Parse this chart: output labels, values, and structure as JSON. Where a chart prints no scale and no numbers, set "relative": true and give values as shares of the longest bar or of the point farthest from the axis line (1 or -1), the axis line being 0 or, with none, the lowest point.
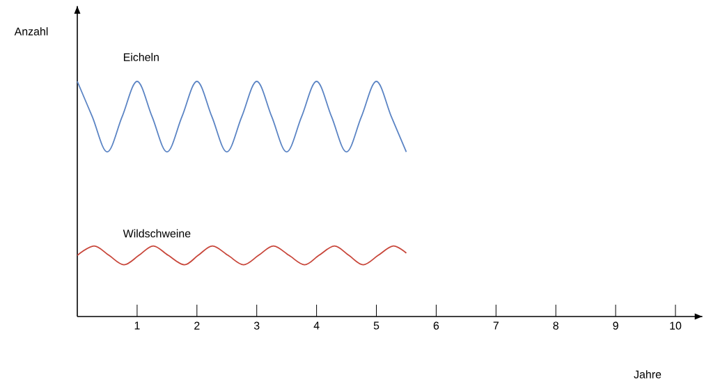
{
  "chart_data": {
    "type": "line",
    "relative": true,
    "xlabel": "Jahre",
    "ylabel": "Anzahl",
    "xlim": [
      0,
      10.45
    ],
    "xticks": [
      1,
      2,
      3,
      4,
      5,
      6,
      7,
      8,
      9,
      10
    ],
    "grid": false,
    "legend": false,
    "marker": "none",
    "line_style": "solid",
    "series": [
      {
        "name": "Eicheln",
        "color": "#5b84c4",
        "x": [
          0,
          0.25,
          0.5,
          0.75,
          1,
          1.25,
          1.5,
          1.75,
          2,
          2.25,
          2.5,
          2.75,
          3,
          3.25,
          3.5,
          3.75,
          4,
          4.25,
          4.5,
          4.75,
          5,
          5.25,
          5.5
        ],
        "values": [
          1,
          0.85,
          0.7,
          0.85,
          1,
          0.85,
          0.7,
          0.85,
          1,
          0.85,
          0.7,
          0.85,
          1,
          0.85,
          0.7,
          0.85,
          1,
          0.85,
          0.7,
          0.85,
          1,
          0.85,
          0.7
        ]
      },
      {
        "name": "Wildschweine",
        "color": "#c8463a",
        "x": [
          0,
          0.28,
          0.53,
          0.78,
          1.03,
          1.27,
          1.52,
          1.79,
          2.02,
          2.26,
          2.52,
          2.78,
          3.03,
          3.28,
          3.54,
          3.8,
          4.04,
          4.3,
          4.54,
          4.78,
          5.03,
          5.28,
          5.5
        ],
        "values": [
          0.26,
          0.3,
          0.26,
          0.22,
          0.26,
          0.3,
          0.26,
          0.22,
          0.26,
          0.3,
          0.26,
          0.22,
          0.26,
          0.3,
          0.26,
          0.22,
          0.26,
          0.3,
          0.26,
          0.22,
          0.26,
          0.3,
          0.27
        ]
      }
    ]
  }
}
